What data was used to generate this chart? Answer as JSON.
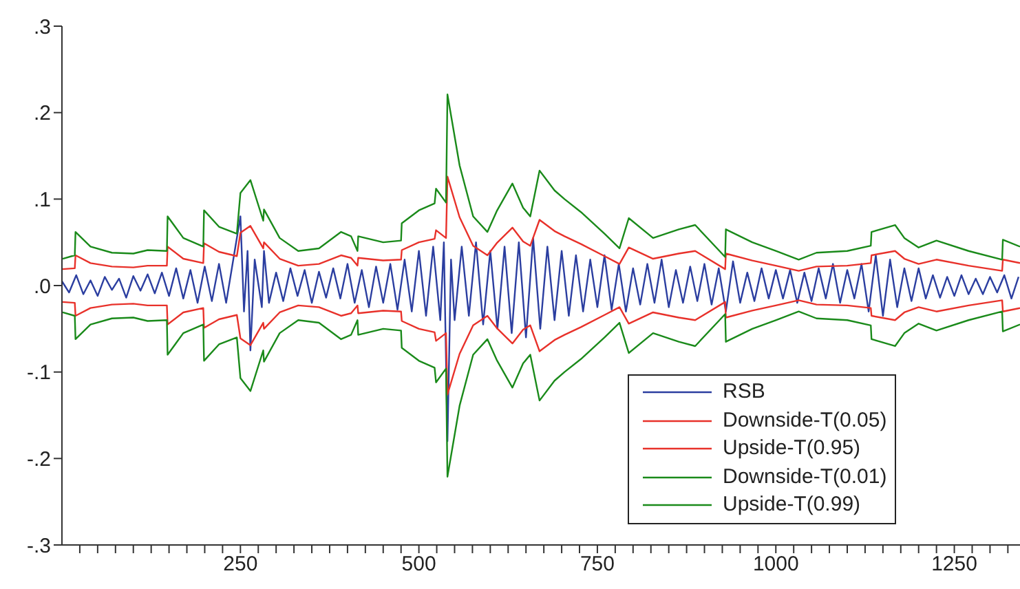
{
  "chart_data": {
    "type": "line",
    "legend": "bottom right",
    "grid": false,
    "marker": "none",
    "line_style": "solid",
    "xlim": [
      0,
      1342
    ],
    "xticks": [
      {
        "value": 25,
        "label": null
      },
      {
        "value": 50,
        "label": null
      },
      {
        "value": 75,
        "label": null
      },
      {
        "value": 100,
        "label": null
      },
      {
        "value": 125,
        "label": null
      },
      {
        "value": 150,
        "label": null
      },
      {
        "value": 175,
        "label": null
      },
      {
        "value": 200,
        "label": null
      },
      {
        "value": 225,
        "label": null
      },
      250,
      {
        "value": 275,
        "label": null
      },
      {
        "value": 300,
        "label": null
      },
      {
        "value": 325,
        "label": null
      },
      {
        "value": 350,
        "label": null
      },
      {
        "value": 375,
        "label": null
      },
      {
        "value": 400,
        "label": null
      },
      {
        "value": 425,
        "label": null
      },
      {
        "value": 450,
        "label": null
      },
      {
        "value": 475,
        "label": null
      },
      500,
      {
        "value": 525,
        "label": null
      },
      {
        "value": 550,
        "label": null
      },
      {
        "value": 575,
        "label": null
      },
      {
        "value": 600,
        "label": null
      },
      {
        "value": 625,
        "label": null
      },
      {
        "value": 650,
        "label": null
      },
      {
        "value": 675,
        "label": null
      },
      {
        "value": 700,
        "label": null
      },
      {
        "value": 725,
        "label": null
      },
      750,
      {
        "value": 775,
        "label": null
      },
      {
        "value": 800,
        "label": null
      },
      {
        "value": 825,
        "label": null
      },
      {
        "value": 850,
        "label": null
      },
      {
        "value": 875,
        "label": null
      },
      {
        "value": 900,
        "label": null
      },
      {
        "value": 925,
        "label": null
      },
      {
        "value": 950,
        "label": null
      },
      {
        "value": 975,
        "label": null
      },
      1000,
      {
        "value": 1025,
        "label": null
      },
      {
        "value": 1050,
        "label": null
      },
      {
        "value": 1075,
        "label": null
      },
      {
        "value": 1100,
        "label": null
      },
      {
        "value": 1125,
        "label": null
      },
      {
        "value": 1150,
        "label": null
      },
      {
        "value": 1175,
        "label": null
      },
      {
        "value": 1200,
        "label": null
      },
      {
        "value": 1225,
        "label": null
      },
      1250,
      {
        "value": 1275,
        "label": null
      },
      {
        "value": 1300,
        "label": null
      },
      {
        "value": 1325,
        "label": null
      }
    ],
    "ylim": [
      -0.3,
      0.3
    ],
    "yticks": [
      {
        "value": -0.3,
        "label": "-.3"
      },
      {
        "value": -0.2,
        "label": "-.2"
      },
      {
        "value": -0.1,
        "label": "-.1"
      },
      {
        "value": 0,
        "label": ".0"
      },
      {
        "value": 0.1,
        "label": ".1"
      },
      {
        "value": 0.2,
        "label": ".2"
      },
      {
        "value": 0.3,
        "label": ".3"
      }
    ],
    "series": [
      {
        "name": "RSB",
        "color": "#2b3ea0",
        "x": [
          0,
          10,
          20,
          30,
          40,
          50,
          60,
          70,
          80,
          90,
          100,
          110,
          120,
          130,
          140,
          150,
          160,
          170,
          180,
          190,
          200,
          210,
          220,
          230,
          240,
          250,
          255,
          260,
          264,
          270,
          280,
          283,
          290,
          300,
          310,
          320,
          330,
          340,
          350,
          360,
          370,
          380,
          390,
          400,
          410,
          420,
          430,
          440,
          450,
          460,
          470,
          480,
          490,
          500,
          510,
          520,
          530,
          535,
          540,
          545,
          550,
          560,
          570,
          580,
          590,
          600,
          610,
          620,
          630,
          640,
          650,
          660,
          670,
          680,
          690,
          700,
          710,
          720,
          730,
          740,
          750,
          760,
          770,
          780,
          790,
          800,
          810,
          820,
          830,
          840,
          850,
          860,
          870,
          880,
          890,
          900,
          910,
          920,
          930,
          940,
          950,
          960,
          970,
          980,
          990,
          1000,
          1010,
          1020,
          1030,
          1040,
          1050,
          1060,
          1070,
          1080,
          1090,
          1100,
          1110,
          1120,
          1130,
          1140,
          1150,
          1160,
          1170,
          1180,
          1190,
          1200,
          1210,
          1220,
          1230,
          1240,
          1250,
          1260,
          1270,
          1280,
          1290,
          1300,
          1310,
          1320,
          1330,
          1340
        ],
        "values": [
          0.005,
          -0.008,
          0.012,
          -0.01,
          0.006,
          -0.012,
          0.01,
          -0.005,
          0.008,
          -0.014,
          0.011,
          -0.006,
          0.013,
          -0.009,
          0.015,
          -0.012,
          0.02,
          -0.015,
          0.018,
          -0.02,
          0.022,
          -0.018,
          0.025,
          -0.02,
          0.03,
          0.08,
          -0.03,
          0.04,
          -0.075,
          0.03,
          -0.025,
          0.04,
          -0.02,
          0.015,
          -0.018,
          0.02,
          -0.012,
          0.018,
          -0.02,
          0.016,
          -0.014,
          0.02,
          -0.015,
          0.025,
          -0.02,
          0.018,
          -0.025,
          0.022,
          -0.02,
          0.025,
          -0.028,
          0.03,
          -0.03,
          0.04,
          -0.035,
          0.045,
          -0.04,
          0.05,
          -0.18,
          0.03,
          -0.04,
          0.045,
          -0.035,
          0.05,
          -0.045,
          0.04,
          -0.05,
          0.045,
          -0.055,
          0.05,
          -0.06,
          0.055,
          -0.05,
          0.045,
          -0.04,
          0.04,
          -0.035,
          0.035,
          -0.03,
          0.03,
          -0.025,
          0.035,
          -0.028,
          0.025,
          -0.03,
          0.02,
          -0.022,
          0.025,
          -0.02,
          0.03,
          -0.025,
          0.018,
          -0.02,
          0.022,
          -0.018,
          0.025,
          -0.022,
          0.02,
          -0.03,
          0.028,
          -0.02,
          0.015,
          -0.018,
          0.02,
          -0.015,
          0.018,
          -0.015,
          0.018,
          -0.02,
          0.015,
          -0.018,
          0.02,
          -0.015,
          0.025,
          -0.02,
          0.018,
          -0.015,
          0.025,
          -0.03,
          0.035,
          -0.035,
          0.03,
          -0.025,
          0.02,
          -0.018,
          0.02,
          -0.015,
          0.012,
          -0.014,
          0.01,
          -0.012,
          0.012,
          -0.01,
          0.008,
          -0.01,
          0.01,
          -0.008,
          0.012,
          -0.015,
          0.01
        ]
      },
      {
        "name": "Downside-T(0.05)",
        "color": "#e8312a",
        "x": [
          1,
          18,
          19,
          40,
          70,
          100,
          120,
          147,
          148,
          170,
          198,
          199,
          220,
          245,
          250,
          264,
          282,
          283,
          305,
          331,
          360,
          391,
          405,
          414,
          415,
          450,
          475,
          476,
          500,
          522,
          524,
          538,
          540,
          557,
          576,
          596,
          609,
          631,
          646,
          656,
          669,
          690,
          704,
          727,
          760,
          781,
          794,
          828,
          864,
          887,
          929,
          930,
          967,
          1000,
          1032,
          1057,
          1100,
          1133,
          1134,
          1167,
          1180,
          1200,
          1225,
          1270,
          1317,
          1318,
          1342
        ],
        "values": [
          -0.019,
          -0.02,
          -0.035,
          -0.026,
          -0.022,
          -0.021,
          -0.023,
          -0.023,
          -0.045,
          -0.031,
          -0.026,
          -0.049,
          -0.039,
          -0.034,
          -0.061,
          -0.069,
          -0.043,
          -0.05,
          -0.031,
          -0.023,
          -0.025,
          -0.035,
          -0.032,
          -0.023,
          -0.032,
          -0.029,
          -0.03,
          -0.041,
          -0.05,
          -0.054,
          -0.064,
          -0.055,
          -0.126,
          -0.079,
          -0.046,
          -0.035,
          -0.049,
          -0.067,
          -0.051,
          -0.046,
          -0.076,
          -0.063,
          -0.057,
          -0.048,
          -0.034,
          -0.025,
          -0.044,
          -0.031,
          -0.037,
          -0.04,
          -0.019,
          -0.037,
          -0.029,
          -0.023,
          -0.017,
          -0.022,
          -0.023,
          -0.026,
          -0.035,
          -0.04,
          -0.031,
          -0.025,
          -0.03,
          -0.023,
          -0.017,
          -0.03,
          -0.026
        ]
      },
      {
        "name": "Upside-T(0.95)",
        "color": "#e8312a",
        "x": [
          1,
          18,
          19,
          40,
          70,
          100,
          120,
          147,
          148,
          170,
          198,
          199,
          220,
          245,
          250,
          264,
          282,
          283,
          305,
          331,
          360,
          391,
          405,
          414,
          415,
          450,
          475,
          476,
          500,
          522,
          524,
          538,
          540,
          557,
          576,
          596,
          609,
          631,
          646,
          656,
          669,
          690,
          704,
          727,
          760,
          781,
          794,
          828,
          864,
          887,
          929,
          930,
          967,
          1000,
          1032,
          1057,
          1100,
          1133,
          1134,
          1167,
          1180,
          1200,
          1225,
          1270,
          1317,
          1318,
          1342
        ],
        "values": [
          0.019,
          0.02,
          0.035,
          0.026,
          0.022,
          0.021,
          0.023,
          0.023,
          0.045,
          0.031,
          0.026,
          0.049,
          0.039,
          0.034,
          0.061,
          0.069,
          0.043,
          0.05,
          0.031,
          0.023,
          0.025,
          0.035,
          0.032,
          0.023,
          0.032,
          0.029,
          0.03,
          0.041,
          0.05,
          0.054,
          0.064,
          0.055,
          0.126,
          0.079,
          0.046,
          0.035,
          0.049,
          0.067,
          0.051,
          0.046,
          0.076,
          0.063,
          0.057,
          0.048,
          0.034,
          0.025,
          0.044,
          0.031,
          0.037,
          0.04,
          0.019,
          0.037,
          0.029,
          0.023,
          0.017,
          0.022,
          0.023,
          0.026,
          0.035,
          0.04,
          0.031,
          0.025,
          0.03,
          0.023,
          0.017,
          0.03,
          0.026
        ]
      },
      {
        "name": "Downside-T(0.01)",
        "color": "#1a8a1a",
        "x": [
          1,
          18,
          19,
          40,
          70,
          100,
          120,
          147,
          148,
          170,
          198,
          199,
          220,
          245,
          250,
          264,
          282,
          283,
          305,
          331,
          360,
          391,
          405,
          414,
          415,
          450,
          475,
          476,
          500,
          522,
          524,
          538,
          540,
          557,
          576,
          596,
          609,
          631,
          646,
          656,
          669,
          690,
          704,
          727,
          760,
          781,
          794,
          828,
          864,
          887,
          929,
          930,
          967,
          1000,
          1032,
          1057,
          1100,
          1133,
          1134,
          1167,
          1180,
          1200,
          1225,
          1270,
          1317,
          1318,
          1342
        ],
        "values": [
          -0.031,
          -0.035,
          -0.062,
          -0.045,
          -0.038,
          -0.037,
          -0.041,
          -0.04,
          -0.08,
          -0.055,
          -0.045,
          -0.087,
          -0.068,
          -0.06,
          -0.107,
          -0.122,
          -0.075,
          -0.088,
          -0.055,
          -0.04,
          -0.043,
          -0.062,
          -0.057,
          -0.04,
          -0.057,
          -0.05,
          -0.052,
          -0.072,
          -0.087,
          -0.095,
          -0.112,
          -0.096,
          -0.221,
          -0.139,
          -0.08,
          -0.062,
          -0.086,
          -0.118,
          -0.09,
          -0.08,
          -0.133,
          -0.11,
          -0.1,
          -0.085,
          -0.06,
          -0.043,
          -0.078,
          -0.055,
          -0.065,
          -0.07,
          -0.033,
          -0.065,
          -0.05,
          -0.04,
          -0.03,
          -0.038,
          -0.04,
          -0.046,
          -0.062,
          -0.07,
          -0.055,
          -0.044,
          -0.052,
          -0.04,
          -0.03,
          -0.053,
          -0.045
        ]
      },
      {
        "name": "Upside-T(0.99)",
        "color": "#1a8a1a",
        "x": [
          1,
          18,
          19,
          40,
          70,
          100,
          120,
          147,
          148,
          170,
          198,
          199,
          220,
          245,
          250,
          264,
          282,
          283,
          305,
          331,
          360,
          391,
          405,
          414,
          415,
          450,
          475,
          476,
          500,
          522,
          524,
          538,
          540,
          557,
          576,
          596,
          609,
          631,
          646,
          656,
          669,
          690,
          704,
          727,
          760,
          781,
          794,
          828,
          864,
          887,
          929,
          930,
          967,
          1000,
          1032,
          1057,
          1100,
          1133,
          1134,
          1167,
          1180,
          1200,
          1225,
          1270,
          1317,
          1318,
          1342
        ],
        "values": [
          0.031,
          0.035,
          0.062,
          0.045,
          0.038,
          0.037,
          0.041,
          0.04,
          0.08,
          0.055,
          0.045,
          0.087,
          0.068,
          0.06,
          0.107,
          0.122,
          0.075,
          0.088,
          0.055,
          0.04,
          0.043,
          0.062,
          0.057,
          0.04,
          0.057,
          0.05,
          0.052,
          0.072,
          0.087,
          0.095,
          0.112,
          0.096,
          0.221,
          0.139,
          0.08,
          0.062,
          0.086,
          0.118,
          0.09,
          0.08,
          0.133,
          0.11,
          0.1,
          0.085,
          0.06,
          0.043,
          0.078,
          0.055,
          0.065,
          0.07,
          0.033,
          0.065,
          0.05,
          0.04,
          0.03,
          0.038,
          0.04,
          0.046,
          0.062,
          0.07,
          0.055,
          0.044,
          0.052,
          0.04,
          0.03,
          0.053,
          0.045
        ]
      }
    ]
  }
}
